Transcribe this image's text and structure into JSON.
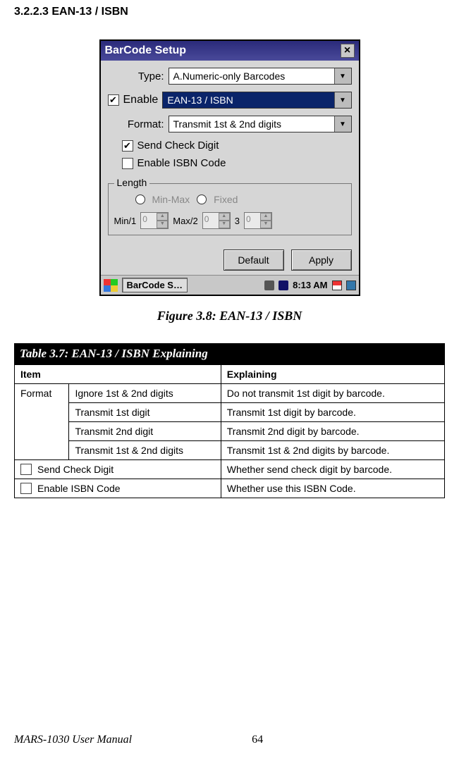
{
  "heading": "3.2.2.3   EAN-13 / ISBN",
  "window": {
    "title": "BarCode Setup",
    "rows": {
      "type_label": "Type:",
      "type_value": "A.Numeric-only Barcodes",
      "enable_label": "Enable",
      "enable_checked": true,
      "enable_value": "EAN-13 / ISBN",
      "format_label": "Format:",
      "format_value": "Transmit 1st & 2nd digits"
    },
    "checks": {
      "send_cd": {
        "label": "Send Check Digit",
        "checked": true
      },
      "isbn": {
        "label": "Enable ISBN Code",
        "checked": false
      }
    },
    "length": {
      "legend": "Length",
      "minmax": "Min-Max",
      "fixed": "Fixed",
      "min1": "Min/1",
      "min1_v": "0",
      "max2": "Max/2",
      "max2_v": "0",
      "three": "3",
      "three_v": "0"
    },
    "buttons": {
      "default": "Default",
      "apply": "Apply"
    },
    "taskbar": {
      "app": "BarCode S…",
      "clock": "8:13 AM"
    }
  },
  "caption": "Figure 3.8: EAN-13 / ISBN",
  "table": {
    "title": "Table 3.7: EAN-13 / ISBN Explaining",
    "h_item": "Item",
    "h_expl": "Explaining",
    "format_label": "Format",
    "r1_i": "Ignore 1st & 2nd digits",
    "r1_e": "Do not transmit 1st digit by barcode.",
    "r2_i": "Transmit 1st digit",
    "r2_e": "Transmit 1st digit by barcode.",
    "r3_i": "Transmit 2nd digit",
    "r3_e": "Transmit 2nd digit by barcode.",
    "r4_i": "Transmit 1st & 2nd digits",
    "r4_e": "Transmit 1st & 2nd digits by barcode.",
    "r5_i": "Send Check Digit",
    "r5_e": "Whether send check digit by barcode.",
    "r6_i": "Enable ISBN Code",
    "r6_e": "Whether use this ISBN Code."
  },
  "footer": {
    "manual": "MARS-1030 User Manual",
    "page": "64"
  }
}
